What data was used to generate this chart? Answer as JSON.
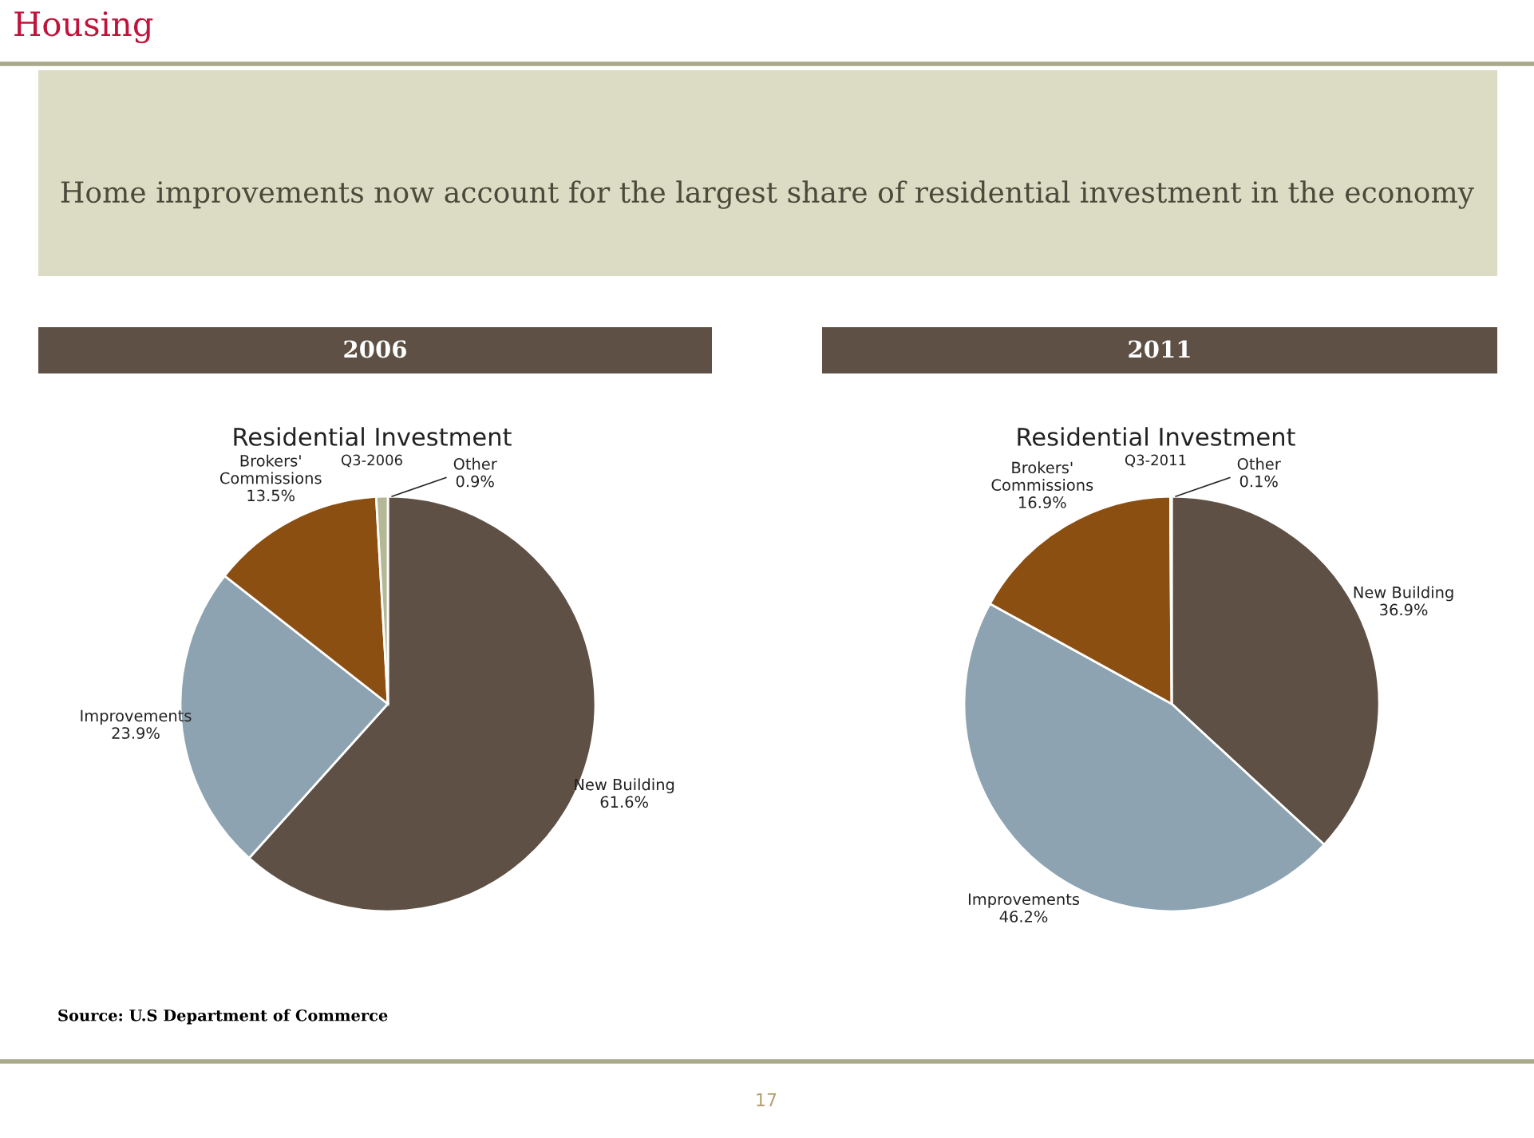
{
  "chart_data": [
    {
      "type": "pie",
      "title": "Residential Investment",
      "subtitle": "Q3-2006",
      "annotations": [
        "Housing",
        "Home improvements now account for the largest share of residential investment in the economy",
        "2006",
        "Source: U.S Department of Commerce",
        "17"
      ],
      "categories": [
        "New Building",
        "Improvements",
        "Brokers'\nCommissions",
        "Other"
      ],
      "values": [
        61.6,
        23.9,
        13.5,
        0.9
      ],
      "value_labels": [
        "61.6%",
        "23.9%",
        "13.5%",
        "0.9%"
      ],
      "colors": [
        "#5e5044",
        "#8da3b1",
        "#8c4f12",
        "#b5b896"
      ]
    },
    {
      "type": "pie",
      "title": "Residential Investment",
      "subtitle": "Q3-2011",
      "annotations": [
        "2011"
      ],
      "categories": [
        "New Building",
        "Improvements",
        "Brokers'\nCommissions",
        "Other"
      ],
      "values": [
        36.9,
        46.2,
        16.9,
        0.1
      ],
      "value_labels": [
        "36.9%",
        "46.2%",
        "16.9%",
        "0.1%"
      ],
      "colors": [
        "#5e5044",
        "#8da3b1",
        "#8c4f12",
        "#b5b896"
      ]
    }
  ]
}
